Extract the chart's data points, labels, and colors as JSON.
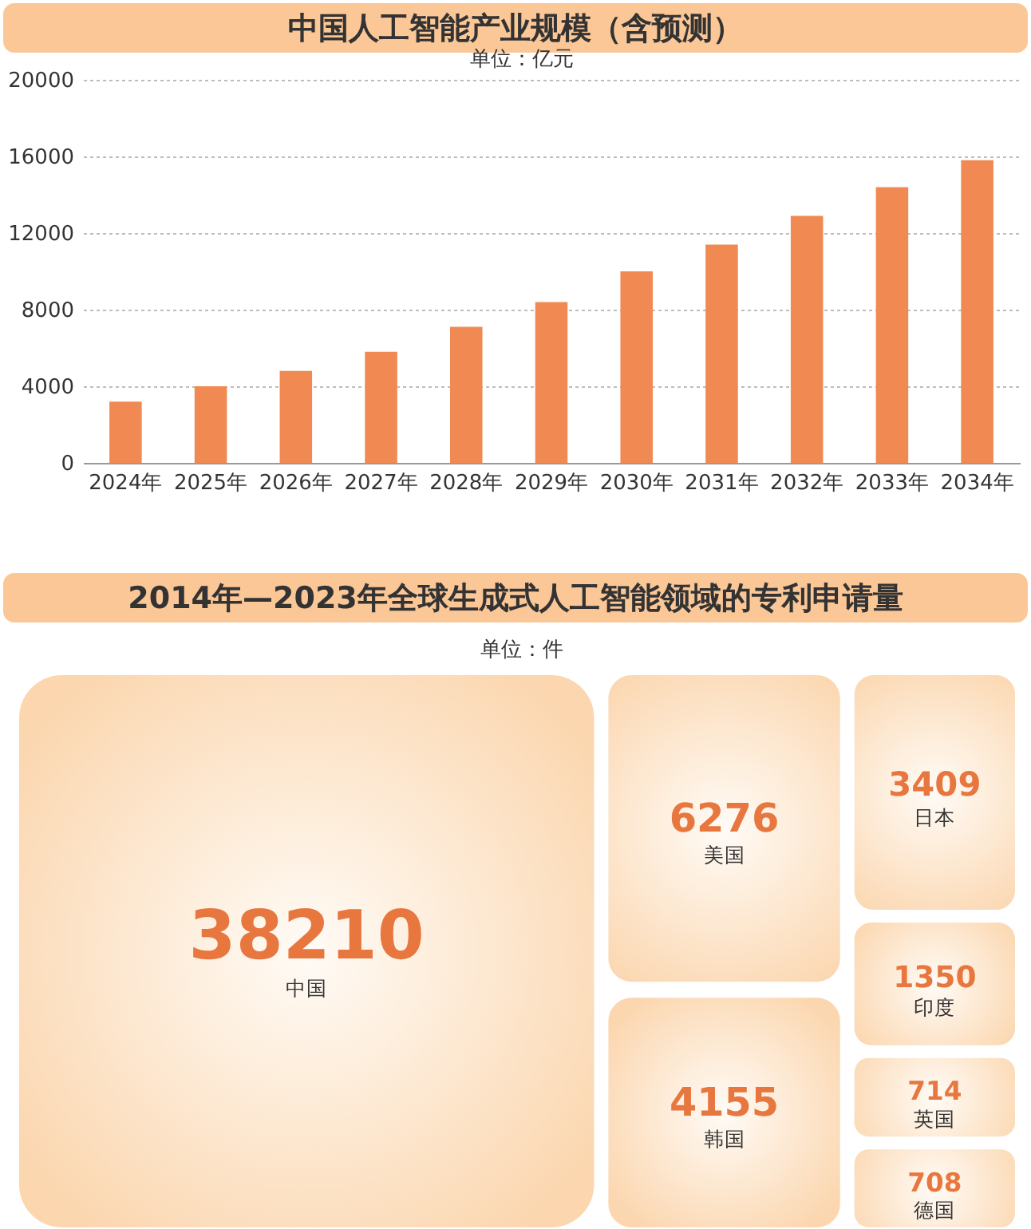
{
  "chart_data": [
    {
      "type": "bar",
      "title": "中国人工智能产业规模（含预测）",
      "subtitle": "单位：亿元",
      "categories": [
        "2024年",
        "2025年",
        "2026年",
        "2027年",
        "2028年",
        "2029年",
        "2030年",
        "2031年",
        "2032年",
        "2033年",
        "2034年"
      ],
      "values": [
        3200,
        4000,
        4800,
        5800,
        7100,
        8400,
        10000,
        11400,
        12900,
        14400,
        15800
      ],
      "color": "#f08a52",
      "ylim": [
        0,
        20000
      ],
      "yticks": [
        0,
        4000,
        8000,
        12000,
        16000,
        20000
      ],
      "grid": "y"
    },
    {
      "type": "other",
      "title": "2014年—2023年全球生成式人工智能领域的专利申请量",
      "subtitle": "单位：件",
      "categories": [
        "中国",
        "美国",
        "韩国",
        "日本",
        "印度",
        "英国",
        "德国"
      ],
      "values": [
        38210,
        6276,
        4155,
        3409,
        1350,
        714,
        708
      ],
      "color": "#fbd6ae",
      "data_labels": true
    }
  ]
}
